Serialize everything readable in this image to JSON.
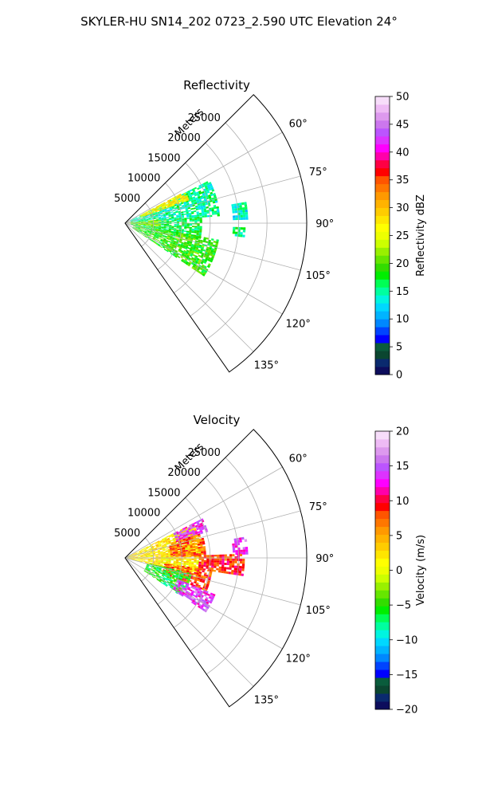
{
  "figure": {
    "suptitle": "SKYLER-HU  SN14_202  0723_2.590 UTC Elevation 24°"
  },
  "chart_data": [
    {
      "type": "polar-sector-heatmap",
      "title": "Reflectivity",
      "range_label": "Meters",
      "range_max": 32000,
      "range_ticks": [
        5000,
        10000,
        15000,
        20000,
        25000
      ],
      "range_tick_labels": [
        "5000",
        "10000",
        "15000",
        "20000",
        "25000"
      ],
      "azimuth_range": [
        45,
        145
      ],
      "azimuth_ticks": [
        60,
        75,
        90,
        105,
        120,
        135
      ],
      "azimuth_tick_labels": [
        "60°",
        "75°",
        "90°",
        "105°",
        "120°",
        "135°"
      ],
      "grid": true,
      "colorbar": {
        "label": "Reflectivity dBZ",
        "min": 0,
        "max": 50,
        "ticks": [
          0,
          5,
          10,
          15,
          20,
          25,
          30,
          35,
          40,
          45,
          50
        ],
        "tick_labels": [
          "0",
          "5",
          "10",
          "15",
          "20",
          "25",
          "30",
          "35",
          "40",
          "45",
          "50"
        ]
      },
      "echo_regions": [
        {
          "az": [
            63,
            85
          ],
          "range": [
            1000,
            16500
          ],
          "value": 15
        },
        {
          "az": [
            85,
            103
          ],
          "range": [
            1000,
            13500
          ],
          "value": 17
        },
        {
          "az": [
            100,
            124
          ],
          "range": [
            1500,
            16500
          ],
          "value": 19
        },
        {
          "az": [
            62,
            70
          ],
          "range": [
            3000,
            12000
          ],
          "value": 27
        },
        {
          "az": [
            84,
            96
          ],
          "range": [
            0,
            6000
          ],
          "value": 22
        },
        {
          "az": [
            80,
            88
          ],
          "range": [
            19000,
            21500
          ],
          "value": 14
        },
        {
          "az": [
            92,
            96
          ],
          "range": [
            19000,
            21000
          ],
          "value": 16
        }
      ]
    },
    {
      "type": "polar-sector-heatmap",
      "title": "Velocity",
      "range_label": "Meters",
      "range_max": 32000,
      "range_ticks": [
        5000,
        10000,
        15000,
        20000,
        25000
      ],
      "range_tick_labels": [
        "5000",
        "10000",
        "15000",
        "20000",
        "25000"
      ],
      "azimuth_range": [
        45,
        145
      ],
      "azimuth_ticks": [
        60,
        75,
        90,
        105,
        120,
        135
      ],
      "azimuth_tick_labels": [
        "60°",
        "75°",
        "90°",
        "105°",
        "120°",
        "135°"
      ],
      "grid": true,
      "colorbar": {
        "label": "Velocity (m/s)",
        "min": -20,
        "max": 20,
        "ticks": [
          -20,
          -15,
          -10,
          -5,
          0,
          5,
          10,
          15,
          20
        ],
        "tick_labels": [
          "−20",
          "−15",
          "−10",
          "−5",
          "0",
          "5",
          "10",
          "15",
          "20"
        ]
      },
      "echo_regions": [
        {
          "az": [
            63,
            103
          ],
          "range": [
            0,
            13500
          ],
          "value": 2
        },
        {
          "az": [
            63,
            72
          ],
          "range": [
            9500,
            15000
          ],
          "value": 14
        },
        {
          "az": [
            72,
            88
          ],
          "range": [
            8000,
            14000
          ],
          "value": 7
        },
        {
          "az": [
            98,
            112
          ],
          "range": [
            7000,
            15500
          ],
          "value": 8
        },
        {
          "az": [
            103,
            124
          ],
          "range": [
            4000,
            12000
          ],
          "value": -6
        },
        {
          "az": [
            112,
            124
          ],
          "range": [
            10000,
            17000
          ],
          "value": 14
        },
        {
          "az": [
            80,
            88
          ],
          "range": [
            19000,
            21500
          ],
          "value": 14
        },
        {
          "az": [
            88,
            98
          ],
          "range": [
            13000,
            21000
          ],
          "value": 9
        }
      ]
    }
  ],
  "colors": {
    "reflectivity_scale": [
      "#0d0d5c",
      "#0a2a6e",
      "#0b4630",
      "#0a5c3c",
      "#0000ff",
      "#0044ff",
      "#0088ff",
      "#00b4ff",
      "#00d8ff",
      "#00f5e0",
      "#00ff9f",
      "#00ff55",
      "#00ee00",
      "#33dd00",
      "#66e600",
      "#99f000",
      "#ccff00",
      "#eeff00",
      "#ffff00",
      "#ffe600",
      "#ffcc00",
      "#ffb300",
      "#ff9900",
      "#ff7700",
      "#ff5500",
      "#ff0000",
      "#ff0044",
      "#ff00aa",
      "#ff00ff",
      "#dd33ff",
      "#bb55ff",
      "#cc77ee",
      "#dd99ee",
      "#eebbf5",
      "#f7ddfa"
    ],
    "velocity_scale": [
      "#0d0d5c",
      "#0a2a6e",
      "#0b4630",
      "#0a5c3c",
      "#0000ff",
      "#0044ff",
      "#0088ff",
      "#00b4ff",
      "#00d8ff",
      "#00f5e0",
      "#00ff9f",
      "#00ff55",
      "#00ee00",
      "#33dd00",
      "#66e600",
      "#99f000",
      "#ccff00",
      "#eeff00",
      "#ffff00",
      "#ffe600",
      "#ffcc00",
      "#ffb300",
      "#ff9900",
      "#ff7700",
      "#ff5500",
      "#ff0000",
      "#ff0044",
      "#ff00aa",
      "#ff00ff",
      "#dd33ff",
      "#bb55ff",
      "#cc77ee",
      "#dd99ee",
      "#eebbf5",
      "#f7ddfa"
    ],
    "grid": "#b0b0b0",
    "frame": "#000000"
  }
}
